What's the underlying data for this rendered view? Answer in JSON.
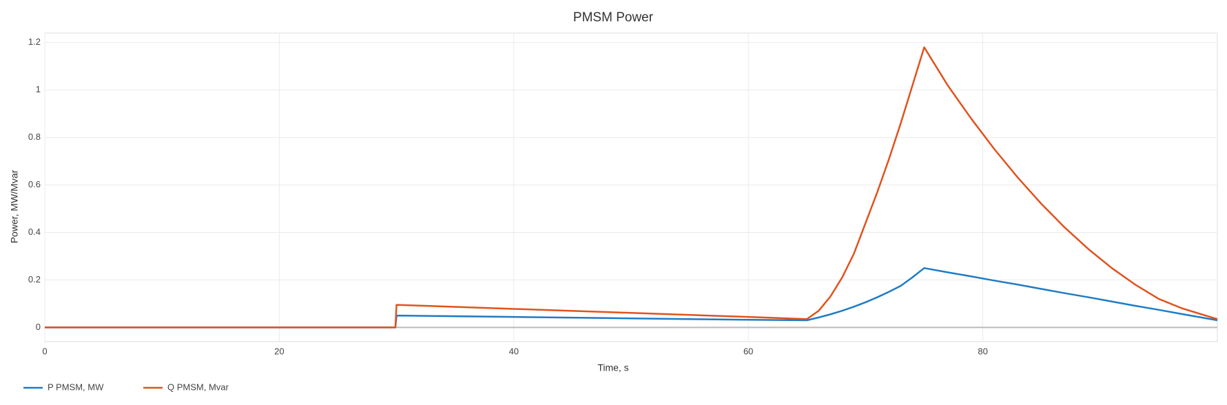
{
  "chart_data": {
    "type": "line",
    "title": "PMSM Power",
    "x_label": "Time, s",
    "y_label": "Power, MW/Mvar",
    "x": [
      0,
      29.9,
      30,
      40,
      50,
      60,
      65,
      66,
      67,
      68,
      69,
      70,
      71,
      72,
      73,
      74,
      75,
      77,
      79,
      81,
      83,
      85,
      87,
      89,
      91,
      93,
      95,
      97,
      100
    ],
    "series": [
      {
        "name": "P PMSM, MW",
        "color": "#1f7bc4",
        "values": [
          0,
          0,
          0.05,
          0.044,
          0.038,
          0.032,
          0.03,
          0.042,
          0.055,
          0.07,
          0.087,
          0.106,
          0.127,
          0.15,
          0.175,
          0.211,
          0.25,
          0.232,
          0.215,
          0.197,
          0.18,
          0.162,
          0.144,
          0.127,
          0.109,
          0.091,
          0.074,
          0.056,
          0.03
        ]
      },
      {
        "name": "Q PMSM, Mvar",
        "color": "#e0521e",
        "values": [
          0,
          0,
          0.095,
          0.078,
          0.061,
          0.044,
          0.035,
          0.07,
          0.13,
          0.21,
          0.31,
          0.44,
          0.57,
          0.71,
          0.86,
          1.02,
          1.18,
          1.02,
          0.88,
          0.75,
          0.63,
          0.52,
          0.42,
          0.33,
          0.25,
          0.18,
          0.12,
          0.08,
          0.035
        ]
      }
    ],
    "xlim": [
      0,
      100
    ],
    "ylim": [
      -0.06,
      1.24
    ],
    "xticks": [
      0,
      20,
      40,
      60,
      80
    ],
    "yticks": [
      0,
      0.2,
      0.4,
      0.6,
      0.8,
      1,
      1.2
    ],
    "grid": true,
    "legend": "bottom-left"
  }
}
